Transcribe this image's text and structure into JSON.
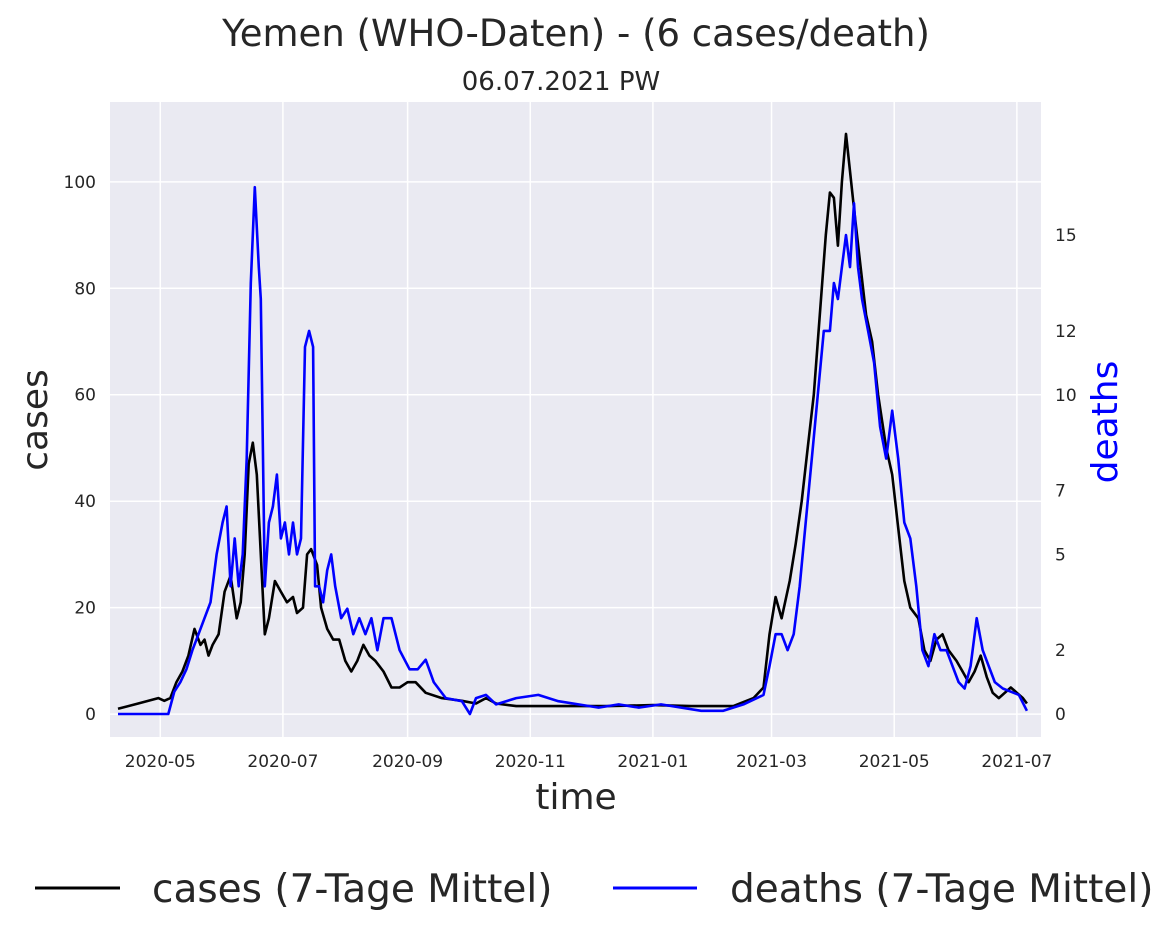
{
  "chart_data": {
    "type": "line",
    "title": "Yemen (WHO-Daten) - (6 cases/death)",
    "subtitle": "06.07.2021 PW",
    "xlabel": "time",
    "ylabel_left": "cases",
    "ylabel_right": "deaths",
    "x_ticks": [
      "2020-05",
      "2020-07",
      "2020-09",
      "2020-11",
      "2021-01",
      "2021-03",
      "2021-05",
      "2021-07"
    ],
    "y_left_ticks": [
      0,
      20,
      40,
      60,
      80,
      100
    ],
    "y_right_ticks": [
      0,
      2,
      5,
      7,
      10,
      12,
      15
    ],
    "xlim": [
      "2020-04-06",
      "2021-07-13"
    ],
    "ylim_left": [
      -4.3,
      115
    ],
    "ylim_right": [
      -0.72,
      19.17
    ],
    "grid": true,
    "legend_position": "bottom",
    "colors": {
      "cases": "#000000",
      "deaths": "#0000ff",
      "background": "#eaeaf2"
    },
    "series": [
      {
        "name": "cases (7-Tage Mittel)",
        "axis": "left",
        "color": "#000000",
        "points": [
          [
            "2020-04-10",
            1
          ],
          [
            "2020-04-20",
            2
          ],
          [
            "2020-04-30",
            3
          ],
          [
            "2020-05-03",
            2.5
          ],
          [
            "2020-05-06",
            3
          ],
          [
            "2020-05-09",
            6
          ],
          [
            "2020-05-12",
            8
          ],
          [
            "2020-05-15",
            11
          ],
          [
            "2020-05-18",
            16
          ],
          [
            "2020-05-21",
            13
          ],
          [
            "2020-05-23",
            14
          ],
          [
            "2020-05-25",
            11
          ],
          [
            "2020-05-27",
            13
          ],
          [
            "2020-05-30",
            15
          ],
          [
            "2020-06-02",
            23
          ],
          [
            "2020-06-05",
            26
          ],
          [
            "2020-06-08",
            18
          ],
          [
            "2020-06-10",
            21
          ],
          [
            "2020-06-12",
            30
          ],
          [
            "2020-06-14",
            47
          ],
          [
            "2020-06-16",
            51
          ],
          [
            "2020-06-18",
            45
          ],
          [
            "2020-06-20",
            30
          ],
          [
            "2020-06-22",
            15
          ],
          [
            "2020-06-24",
            18
          ],
          [
            "2020-06-27",
            25
          ],
          [
            "2020-06-30",
            23
          ],
          [
            "2020-07-03",
            21
          ],
          [
            "2020-07-06",
            22
          ],
          [
            "2020-07-08",
            19
          ],
          [
            "2020-07-11",
            20
          ],
          [
            "2020-07-13",
            30
          ],
          [
            "2020-07-15",
            31
          ],
          [
            "2020-07-18",
            28
          ],
          [
            "2020-07-20",
            20
          ],
          [
            "2020-07-23",
            16
          ],
          [
            "2020-07-26",
            14
          ],
          [
            "2020-07-29",
            14
          ],
          [
            "2020-08-01",
            10
          ],
          [
            "2020-08-04",
            8
          ],
          [
            "2020-08-07",
            10
          ],
          [
            "2020-08-10",
            13
          ],
          [
            "2020-08-13",
            11
          ],
          [
            "2020-08-16",
            10
          ],
          [
            "2020-08-20",
            8
          ],
          [
            "2020-08-24",
            5
          ],
          [
            "2020-08-28",
            5
          ],
          [
            "2020-09-01",
            6
          ],
          [
            "2020-09-05",
            6
          ],
          [
            "2020-09-10",
            4
          ],
          [
            "2020-09-18",
            3
          ],
          [
            "2020-09-28",
            2.5
          ],
          [
            "2020-10-05",
            2
          ],
          [
            "2020-10-10",
            3
          ],
          [
            "2020-10-15",
            2
          ],
          [
            "2020-10-25",
            1.5
          ],
          [
            "2020-11-10",
            1.5
          ],
          [
            "2020-11-25",
            1.5
          ],
          [
            "2020-12-10",
            1.5
          ],
          [
            "2021-01-01",
            1.7
          ],
          [
            "2021-01-20",
            1.5
          ],
          [
            "2021-02-10",
            1.5
          ],
          [
            "2021-02-20",
            3
          ],
          [
            "2021-02-25",
            5
          ],
          [
            "2021-02-28",
            15
          ],
          [
            "2021-03-03",
            22
          ],
          [
            "2021-03-06",
            18
          ],
          [
            "2021-03-10",
            25
          ],
          [
            "2021-03-13",
            32
          ],
          [
            "2021-03-16",
            40
          ],
          [
            "2021-03-19",
            50
          ],
          [
            "2021-03-22",
            60
          ],
          [
            "2021-03-25",
            75
          ],
          [
            "2021-03-28",
            90
          ],
          [
            "2021-03-30",
            98
          ],
          [
            "2021-04-01",
            97
          ],
          [
            "2021-04-03",
            88
          ],
          [
            "2021-04-05",
            100
          ],
          [
            "2021-04-07",
            109
          ],
          [
            "2021-04-09",
            102
          ],
          [
            "2021-04-11",
            95
          ],
          [
            "2021-04-14",
            85
          ],
          [
            "2021-04-17",
            75
          ],
          [
            "2021-04-20",
            70
          ],
          [
            "2021-04-23",
            60
          ],
          [
            "2021-04-27",
            50
          ],
          [
            "2021-04-30",
            45
          ],
          [
            "2021-05-03",
            35
          ],
          [
            "2021-05-06",
            25
          ],
          [
            "2021-05-09",
            20
          ],
          [
            "2021-05-13",
            18
          ],
          [
            "2021-05-16",
            12
          ],
          [
            "2021-05-19",
            10
          ],
          [
            "2021-05-22",
            14
          ],
          [
            "2021-05-25",
            15
          ],
          [
            "2021-05-28",
            12
          ],
          [
            "2021-06-01",
            10
          ],
          [
            "2021-06-04",
            8
          ],
          [
            "2021-06-07",
            6
          ],
          [
            "2021-06-10",
            8
          ],
          [
            "2021-06-13",
            11
          ],
          [
            "2021-06-16",
            7
          ],
          [
            "2021-06-19",
            4
          ],
          [
            "2021-06-22",
            3
          ],
          [
            "2021-06-25",
            4
          ],
          [
            "2021-06-28",
            5
          ],
          [
            "2021-07-01",
            4
          ],
          [
            "2021-07-04",
            3
          ],
          [
            "2021-07-06",
            2
          ]
        ]
      },
      {
        "name": "deaths (7-Tage Mittel)",
        "axis": "right",
        "color": "#0000ff",
        "points": [
          [
            "2020-04-10",
            0
          ],
          [
            "2020-05-05",
            0
          ],
          [
            "2020-05-08",
            0.7
          ],
          [
            "2020-05-11",
            1
          ],
          [
            "2020-05-14",
            1.4
          ],
          [
            "2020-05-17",
            2
          ],
          [
            "2020-05-20",
            2.5
          ],
          [
            "2020-05-23",
            3
          ],
          [
            "2020-05-26",
            3.5
          ],
          [
            "2020-05-29",
            5
          ],
          [
            "2020-06-01",
            6
          ],
          [
            "2020-06-03",
            6.5
          ],
          [
            "2020-06-05",
            4
          ],
          [
            "2020-06-07",
            5.5
          ],
          [
            "2020-06-09",
            4
          ],
          [
            "2020-06-11",
            5
          ],
          [
            "2020-06-13",
            8
          ],
          [
            "2020-06-15",
            13.5
          ],
          [
            "2020-06-17",
            16.5
          ],
          [
            "2020-06-19",
            14
          ],
          [
            "2020-06-20",
            13
          ],
          [
            "2020-06-22",
            4
          ],
          [
            "2020-06-24",
            6
          ],
          [
            "2020-06-26",
            6.5
          ],
          [
            "2020-06-28",
            7.5
          ],
          [
            "2020-06-30",
            5.5
          ],
          [
            "2020-07-02",
            6
          ],
          [
            "2020-07-04",
            5
          ],
          [
            "2020-07-06",
            6
          ],
          [
            "2020-07-08",
            5
          ],
          [
            "2020-07-10",
            5.5
          ],
          [
            "2020-07-12",
            11.5
          ],
          [
            "2020-07-14",
            12
          ],
          [
            "2020-07-16",
            11.5
          ],
          [
            "2020-07-17",
            4
          ],
          [
            "2020-07-19",
            4
          ],
          [
            "2020-07-21",
            3.5
          ],
          [
            "2020-07-23",
            4.5
          ],
          [
            "2020-07-25",
            5
          ],
          [
            "2020-07-27",
            4
          ],
          [
            "2020-07-30",
            3
          ],
          [
            "2020-08-02",
            3.3
          ],
          [
            "2020-08-05",
            2.5
          ],
          [
            "2020-08-08",
            3
          ],
          [
            "2020-08-11",
            2.5
          ],
          [
            "2020-08-14",
            3
          ],
          [
            "2020-08-17",
            2
          ],
          [
            "2020-08-20",
            3
          ],
          [
            "2020-08-24",
            3
          ],
          [
            "2020-08-28",
            2
          ],
          [
            "2020-09-02",
            1.4
          ],
          [
            "2020-09-06",
            1.4
          ],
          [
            "2020-09-10",
            1.7
          ],
          [
            "2020-09-14",
            1
          ],
          [
            "2020-09-20",
            0.5
          ],
          [
            "2020-09-28",
            0.4
          ],
          [
            "2020-10-02",
            0
          ],
          [
            "2020-10-05",
            0.5
          ],
          [
            "2020-10-10",
            0.6
          ],
          [
            "2020-10-15",
            0.3
          ],
          [
            "2020-10-25",
            0.5
          ],
          [
            "2020-11-05",
            0.6
          ],
          [
            "2020-11-15",
            0.4
          ],
          [
            "2020-11-25",
            0.3
          ],
          [
            "2020-12-05",
            0.2
          ],
          [
            "2020-12-15",
            0.3
          ],
          [
            "2020-12-25",
            0.2
          ],
          [
            "2021-01-05",
            0.3
          ],
          [
            "2021-01-15",
            0.2
          ],
          [
            "2021-01-25",
            0.1
          ],
          [
            "2021-02-05",
            0.1
          ],
          [
            "2021-02-15",
            0.3
          ],
          [
            "2021-02-25",
            0.6
          ],
          [
            "2021-02-28",
            1.5
          ],
          [
            "2021-03-03",
            2.5
          ],
          [
            "2021-03-06",
            2.5
          ],
          [
            "2021-03-09",
            2
          ],
          [
            "2021-03-12",
            2.5
          ],
          [
            "2021-03-15",
            4
          ],
          [
            "2021-03-18",
            6
          ],
          [
            "2021-03-21",
            8
          ],
          [
            "2021-03-24",
            10
          ],
          [
            "2021-03-27",
            12
          ],
          [
            "2021-03-30",
            12
          ],
          [
            "2021-04-01",
            13.5
          ],
          [
            "2021-04-03",
            13
          ],
          [
            "2021-04-05",
            14
          ],
          [
            "2021-04-07",
            15
          ],
          [
            "2021-04-09",
            14
          ],
          [
            "2021-04-11",
            16
          ],
          [
            "2021-04-13",
            14
          ],
          [
            "2021-04-15",
            13
          ],
          [
            "2021-04-18",
            12
          ],
          [
            "2021-04-21",
            11
          ],
          [
            "2021-04-24",
            9
          ],
          [
            "2021-04-27",
            8
          ],
          [
            "2021-04-30",
            9.5
          ],
          [
            "2021-05-03",
            8
          ],
          [
            "2021-05-06",
            6
          ],
          [
            "2021-05-09",
            5.5
          ],
          [
            "2021-05-12",
            4
          ],
          [
            "2021-05-15",
            2
          ],
          [
            "2021-05-18",
            1.5
          ],
          [
            "2021-05-21",
            2.5
          ],
          [
            "2021-05-24",
            2
          ],
          [
            "2021-05-27",
            2
          ],
          [
            "2021-05-30",
            1.5
          ],
          [
            "2021-06-02",
            1
          ],
          [
            "2021-06-05",
            0.8
          ],
          [
            "2021-06-08",
            1.5
          ],
          [
            "2021-06-11",
            3
          ],
          [
            "2021-06-14",
            2
          ],
          [
            "2021-06-17",
            1.5
          ],
          [
            "2021-06-20",
            1
          ],
          [
            "2021-06-24",
            0.8
          ],
          [
            "2021-06-28",
            0.7
          ],
          [
            "2021-07-02",
            0.6
          ],
          [
            "2021-07-06",
            0.1
          ]
        ]
      }
    ]
  }
}
